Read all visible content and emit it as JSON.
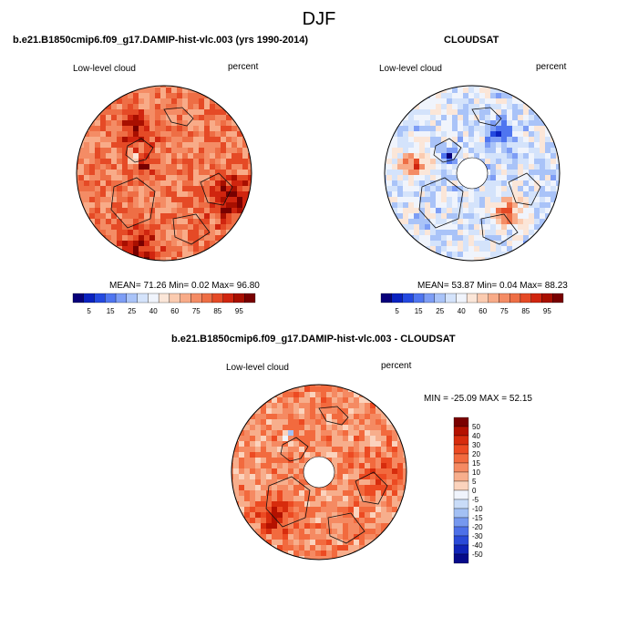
{
  "figure": {
    "title": "DJF",
    "panels": [
      {
        "id": "model",
        "title": "b.e21.B1850cmip6.f09_g17.DAMIP-hist-vlc.003 (yrs 1990-2014)",
        "left_label": "Low-level cloud",
        "right_label": "percent",
        "stats": "MEAN=  71.26  Min=   0.02  Max=  96.80",
        "pole_hole": false,
        "seed": 11,
        "base": 0.7,
        "features": [
          {
            "lon": 205,
            "lat": 75,
            "v": 0.25,
            "w": 0.09,
            "note": "greenland low"
          },
          {
            "lon": 210,
            "lat": 70,
            "v": -0.5,
            "w": 0.05,
            "note": "greenland core"
          },
          {
            "lon": 20,
            "lat": 50,
            "v": 0.25,
            "w": 0.25
          },
          {
            "lon": 110,
            "lat": 45,
            "v": 0.2,
            "w": 0.25
          },
          {
            "lon": 235,
            "lat": 58,
            "v": 0.2,
            "w": 0.2
          }
        ]
      },
      {
        "id": "obs",
        "title": "CLOUDSAT",
        "left_label": "Low-level cloud",
        "right_label": "percent",
        "stats": "MEAN=  53.87  Min=   0.04  Max=  88.23",
        "pole_hole": true,
        "seed": 23,
        "base": 0.4,
        "features": [
          {
            "lon": 215,
            "lat": 72,
            "v": -0.3,
            "w": 0.07
          },
          {
            "lon": 190,
            "lat": 55,
            "v": 0.35,
            "w": 0.15
          },
          {
            "lon": 50,
            "lat": 62,
            "v": 0.35,
            "w": 0.15
          },
          {
            "lon": 300,
            "lat": 62,
            "v": -0.2,
            "w": 0.15
          }
        ]
      },
      {
        "id": "diff",
        "title": "b.e21.B1850cmip6.f09_g17.DAMIP-hist-vlc.003 - CLOUDSAT",
        "left_label": "Low-level cloud",
        "right_label": "percent",
        "stats": "MIN = -25.09 MAX =  52.15",
        "pole_hole": true,
        "seed": 37,
        "base": 0.65,
        "features": [
          {
            "lon": 230,
            "lat": 60,
            "v": -0.35,
            "w": 0.05,
            "note": "negative anomaly"
          },
          {
            "lon": 140,
            "lat": 55,
            "v": 0.25,
            "w": 0.2
          },
          {
            "lon": 0,
            "lat": 55,
            "v": 0.15,
            "w": 0.2
          }
        ]
      }
    ]
  },
  "colorbar_abs": {
    "labels": [
      "5",
      "15",
      "25",
      "40",
      "60",
      "75",
      "85",
      "95"
    ],
    "colors": [
      "#08007a",
      "#0a22c0",
      "#2449e0",
      "#4f75f0",
      "#7d9df5",
      "#a9c3f8",
      "#d4e3fb",
      "#f0f4fc",
      "#fbe6d8",
      "#fbcbb0",
      "#f8ab88",
      "#f48c65",
      "#ee6e45",
      "#e54a26",
      "#d0250f",
      "#a80f00",
      "#780000"
    ]
  },
  "colorbar_diff": {
    "labels": [
      "50",
      "40",
      "30",
      "20",
      "15",
      "10",
      "5",
      "0",
      "-5",
      "-10",
      "-15",
      "-20",
      "-30",
      "-40",
      "-50"
    ],
    "colors": [
      "#7a0000",
      "#b41100",
      "#d72c0d",
      "#ec4a22",
      "#f26a3e",
      "#f58a62",
      "#f7ae8c",
      "#fbd3bd",
      "#f0f4fc",
      "#c9dcf8",
      "#a3c0f4",
      "#7698ef",
      "#4d70e8",
      "#2a4ad8",
      "#1024b8",
      "#060a8a"
    ]
  }
}
